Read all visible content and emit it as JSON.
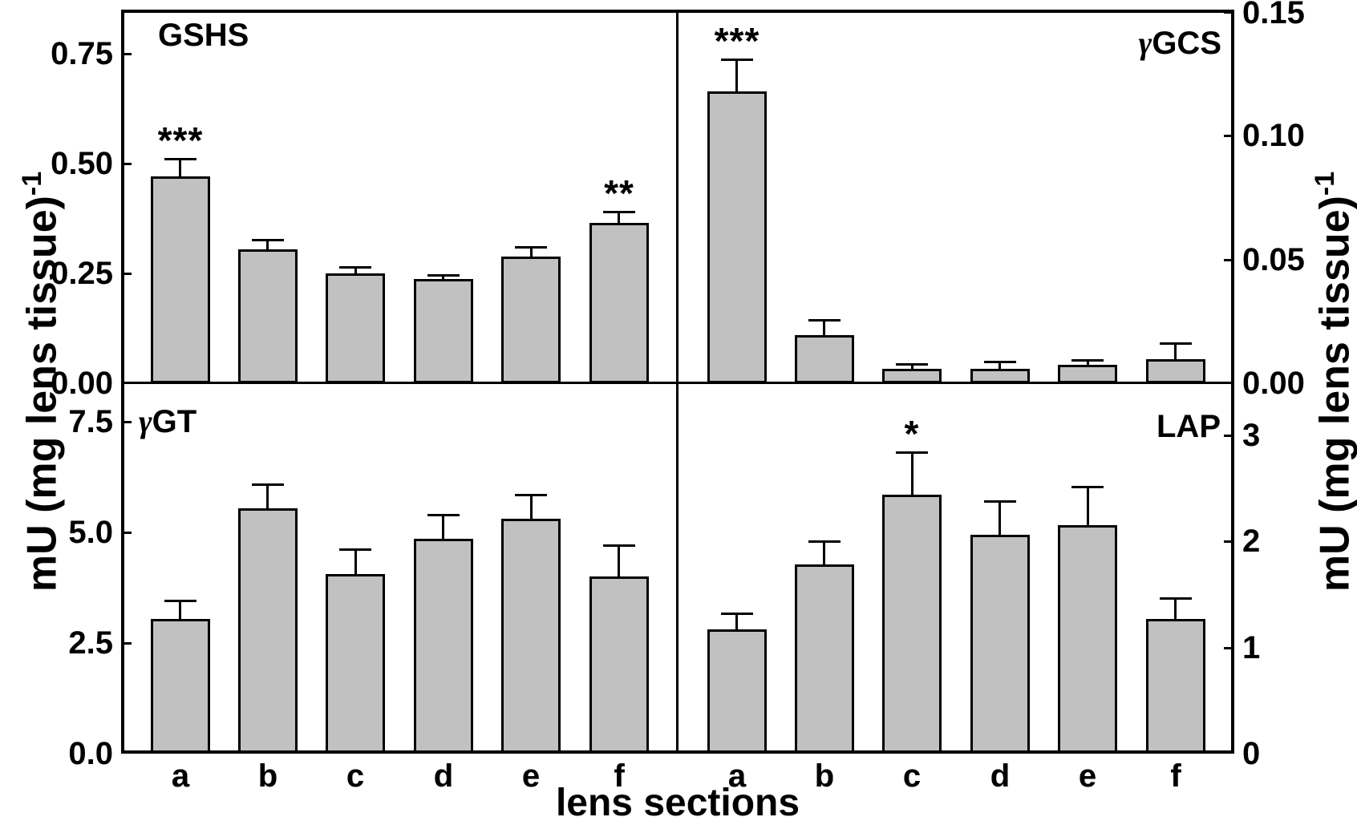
{
  "figure": {
    "background": "#ffffff",
    "bar_fill_color": "#c1c1c1",
    "line_color": "#000000",
    "left_axis_label": {
      "text": "mU (mg lens tissue)",
      "superscript": "-1"
    },
    "right_axis_label": {
      "text": "mU (mg lens tissue)",
      "superscript": "-1"
    },
    "x_axis_label": "lens sections",
    "categories": [
      "a",
      "b",
      "c",
      "d",
      "e",
      "f"
    ]
  },
  "chart_data": [
    {
      "type": "bar",
      "panel": "top-left",
      "title": "GSHS",
      "axis_side": "left",
      "categories": [
        "a",
        "b",
        "c",
        "d",
        "e",
        "f"
      ],
      "values": [
        0.47,
        0.305,
        0.25,
        0.238,
        0.288,
        0.365
      ],
      "errors": [
        0.04,
        0.022,
        0.014,
        0.009,
        0.021,
        0.026
      ],
      "significance": [
        "***",
        "",
        "",
        "",
        "",
        "**"
      ],
      "ylim": [
        0,
        0.85
      ],
      "yticks": [
        {
          "label": "0.00",
          "value": 0
        },
        {
          "label": "0.25",
          "value": 0.25
        },
        {
          "label": "0.50",
          "value": 0.5
        },
        {
          "label": "0.75",
          "value": 0.75
        }
      ]
    },
    {
      "type": "bar",
      "panel": "top-right",
      "title": "γGCS",
      "axis_side": "right",
      "categories": [
        "a",
        "b",
        "c",
        "d",
        "e",
        "f"
      ],
      "values": [
        0.118,
        0.0195,
        0.0058,
        0.0058,
        0.0073,
        0.0098
      ],
      "errors": [
        0.013,
        0.006,
        0.002,
        0.003,
        0.002,
        0.0065
      ],
      "significance": [
        "***",
        "",
        "",
        "",
        "",
        ""
      ],
      "ylim": [
        0,
        0.151
      ],
      "yticks": [
        {
          "label": "0.00",
          "value": 0
        },
        {
          "label": "0.05",
          "value": 0.05
        },
        {
          "label": "0.10",
          "value": 0.1
        },
        {
          "label": "0.15",
          "value": 0.15
        }
      ]
    },
    {
      "type": "bar",
      "panel": "bottom-left",
      "title": "γGT",
      "axis_side": "left",
      "categories": [
        "a",
        "b",
        "c",
        "d",
        "e",
        "f"
      ],
      "values": [
        3.05,
        5.55,
        4.05,
        4.85,
        5.3,
        4.0
      ],
      "errors": [
        0.42,
        0.54,
        0.57,
        0.55,
        0.55,
        0.7
      ],
      "significance": [
        "",
        "",
        "",
        "",
        "",
        ""
      ],
      "ylim": [
        0,
        8.37
      ],
      "yticks": [
        {
          "label": "0.0",
          "value": 0
        },
        {
          "label": "2.5",
          "value": 2.5
        },
        {
          "label": "5.0",
          "value": 5.0
        },
        {
          "label": "7.5",
          "value": 7.5
        }
      ]
    },
    {
      "type": "bar",
      "panel": "bottom-right",
      "title": "LAP",
      "axis_side": "right",
      "categories": [
        "a",
        "b",
        "c",
        "d",
        "e",
        "f"
      ],
      "values": [
        1.17,
        1.78,
        2.44,
        2.06,
        2.15,
        1.27
      ],
      "errors": [
        0.15,
        0.22,
        0.4,
        0.32,
        0.36,
        0.2
      ],
      "significance": [
        "",
        "",
        "*",
        "",
        "",
        ""
      ],
      "ylim": [
        0,
        3.49
      ],
      "yticks": [
        {
          "label": "0",
          "value": 0
        },
        {
          "label": "1",
          "value": 1
        },
        {
          "label": "2",
          "value": 2
        },
        {
          "label": "3",
          "value": 3
        }
      ]
    }
  ]
}
